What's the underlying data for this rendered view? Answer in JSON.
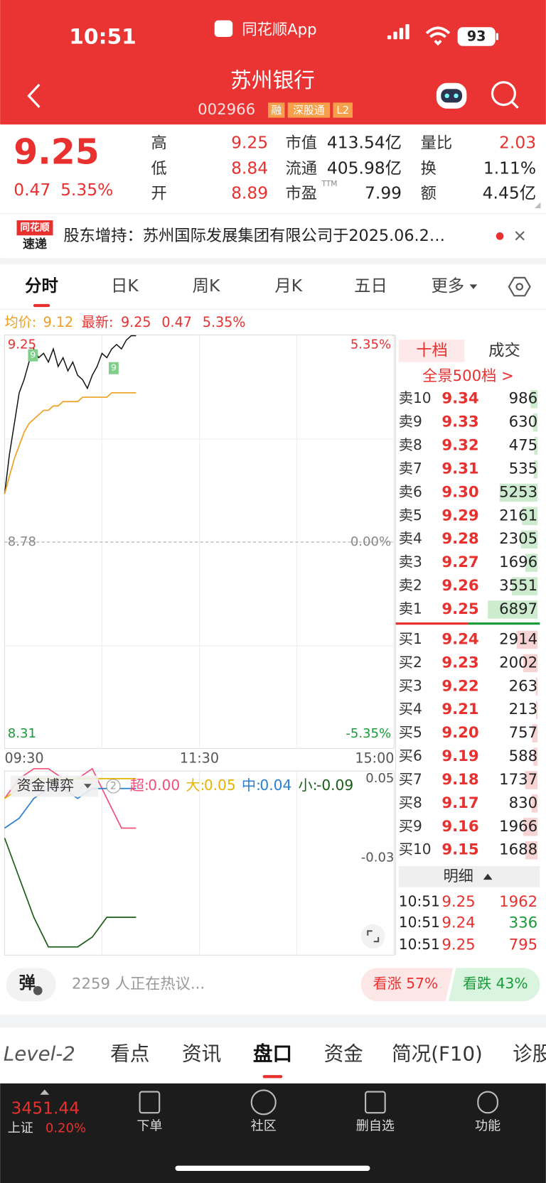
{
  "status": {
    "time": "10:51",
    "app": "同花顺App",
    "battery": "93"
  },
  "header": {
    "title": "苏州银行",
    "code": "002966",
    "tags": [
      "融",
      "深股通",
      "L2"
    ]
  },
  "quote": {
    "price": "9.25",
    "change": "0.47",
    "change_pct": "5.35%",
    "stats": [
      {
        "label": "高",
        "value": "9.25"
      },
      {
        "label": "低",
        "value": "8.84"
      },
      {
        "label": "开",
        "value": "8.89"
      },
      {
        "label": "市值",
        "value": "413.54亿"
      },
      {
        "label": "流通",
        "value": "405.98亿"
      },
      {
        "label": "市盈",
        "sup": "TTM",
        "value": "7.99"
      },
      {
        "label": "量比",
        "value": "2.03"
      },
      {
        "label": "换",
        "value": "1.11%"
      },
      {
        "label": "额",
        "value": "4.45亿"
      }
    ]
  },
  "news": {
    "badge": [
      "同花顺",
      "速递"
    ],
    "text": "股东增持：苏州国际发展集团有限公司于2025.06.2…"
  },
  "tabs": [
    "分时",
    "日K",
    "周K",
    "月K",
    "五日",
    "更多"
  ],
  "intraday": {
    "legend": {
      "avg_label": "均价:",
      "avg": "9.12",
      "latest_label": "最新:",
      "latest": "9.25",
      "change": "0.47",
      "pct": "5.35%"
    },
    "ylim": [
      8.31,
      9.25
    ],
    "yticks": [
      9.25,
      8.78,
      8.31
    ],
    "y2lim": [
      -5.35,
      5.35
    ],
    "y2ticks": [
      {
        "value": 5.35,
        "label": "5.35%"
      },
      {
        "value": 0,
        "label": "0.00%"
      },
      {
        "value": -5.35,
        "label": "-5.35%"
      }
    ],
    "times": [
      "09:30",
      "11:30",
      "15:00"
    ],
    "markers": [
      "9",
      "9"
    ],
    "series": [
      {
        "name": "price",
        "color": "#111111",
        "values": [
          8.89,
          8.98,
          9.05,
          9.12,
          9.15,
          9.19,
          9.22,
          9.2,
          9.21,
          9.19,
          9.22,
          9.18,
          9.2,
          9.17,
          9.19,
          9.16,
          9.15,
          9.13,
          9.16,
          9.18,
          9.21,
          9.2,
          9.22,
          9.23,
          9.22,
          9.24,
          9.25,
          9.25
        ]
      },
      {
        "name": "avg",
        "color": "#f0a020",
        "values": [
          8.89,
          8.93,
          8.97,
          9.0,
          9.03,
          9.05,
          9.06,
          9.07,
          9.08,
          9.08,
          9.09,
          9.09,
          9.1,
          9.1,
          9.1,
          9.1,
          9.11,
          9.11,
          9.11,
          9.11,
          9.11,
          9.11,
          9.12,
          9.12,
          9.12,
          9.12,
          9.12,
          9.12
        ]
      }
    ]
  },
  "fund": {
    "title": "资金博弈",
    "badge": "2",
    "yticks": [
      0.05,
      -0.03
    ],
    "series": [
      {
        "name": "超:",
        "value": "0.00",
        "color": "#f0507a",
        "values": [
          0.03,
          0.05,
          0.06,
          0.06,
          0.05,
          0.05,
          0.06,
          0.03,
          0.0,
          0.0
        ]
      },
      {
        "name": "大:",
        "value": "0.05",
        "color": "#e8b400",
        "values": [
          0.03,
          0.04,
          0.05,
          0.05,
          0.05,
          0.05,
          0.05,
          0.05,
          0.05,
          0.05
        ]
      },
      {
        "name": "中:",
        "value": "0.04",
        "color": "#2a7fd0",
        "values": [
          0.0,
          0.01,
          0.03,
          0.04,
          0.04,
          0.03,
          0.04,
          0.04,
          0.04,
          0.04
        ]
      },
      {
        "name": "小:",
        "value": "-0.09",
        "color": "#1a5e1a",
        "values": [
          -0.01,
          -0.05,
          -0.09,
          -0.12,
          -0.12,
          -0.12,
          -0.11,
          -0.09,
          -0.09,
          -0.09
        ]
      }
    ]
  },
  "orderbook": {
    "tabs": [
      "十档",
      "成交"
    ],
    "link": "全景500档 >",
    "sells": [
      {
        "label": "卖10",
        "price": "9.34",
        "vol": 986
      },
      {
        "label": "卖9",
        "price": "9.33",
        "vol": 630
      },
      {
        "label": "卖8",
        "price": "9.32",
        "vol": 475
      },
      {
        "label": "卖7",
        "price": "9.31",
        "vol": 535
      },
      {
        "label": "卖6",
        "price": "9.30",
        "vol": 5253
      },
      {
        "label": "卖5",
        "price": "9.29",
        "vol": 2161
      },
      {
        "label": "卖4",
        "price": "9.28",
        "vol": 2305
      },
      {
        "label": "卖3",
        "price": "9.27",
        "vol": 1696
      },
      {
        "label": "卖2",
        "price": "9.26",
        "vol": 3551
      },
      {
        "label": "卖1",
        "price": "9.25",
        "vol": 6897
      }
    ],
    "buys": [
      {
        "label": "买1",
        "price": "9.24",
        "vol": 2914
      },
      {
        "label": "买2",
        "price": "9.23",
        "vol": 2002
      },
      {
        "label": "买3",
        "price": "9.22",
        "vol": 263
      },
      {
        "label": "买4",
        "price": "9.21",
        "vol": 213
      },
      {
        "label": "买5",
        "price": "9.20",
        "vol": 757
      },
      {
        "label": "买6",
        "price": "9.19",
        "vol": 588
      },
      {
        "label": "买7",
        "price": "9.18",
        "vol": 1737
      },
      {
        "label": "买8",
        "price": "9.17",
        "vol": 830
      },
      {
        "label": "买9",
        "price": "9.16",
        "vol": 1966
      },
      {
        "label": "买10",
        "price": "9.15",
        "vol": 1688
      }
    ],
    "detail": "明细",
    "trades": [
      {
        "time": "10:51",
        "price": "9.25",
        "vol": 1962,
        "vol_color": "#e8312f"
      },
      {
        "time": "10:51",
        "price": "9.24",
        "vol": 336,
        "vol_color": "#1a9a3a"
      },
      {
        "time": "10:51",
        "price": "9.25",
        "vol": 795,
        "vol_color": "#e8312f"
      }
    ]
  },
  "social": {
    "button": "弹",
    "text": "2259 人正在热议...",
    "up": "看涨 57%",
    "down": "看跌 43%"
  },
  "bottom_tabs": [
    "Level-2",
    "看点",
    "资讯",
    "盘口",
    "资金",
    "简况(F10)",
    "诊股"
  ],
  "nav": {
    "index_value": "3451.44",
    "index_name": "上证",
    "index_pct": "0.20%",
    "items": [
      "下单",
      "社区",
      "删自选",
      "功能"
    ]
  }
}
